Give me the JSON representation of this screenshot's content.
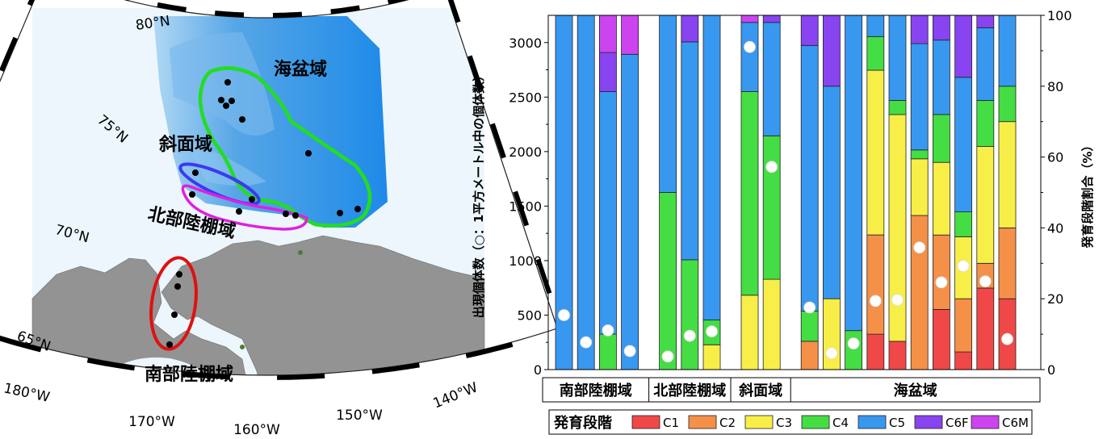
{
  "map": {
    "lat_labels": [
      "80°N",
      "75°N",
      "70°N",
      "65°N"
    ],
    "lon_labels": [
      "180°W",
      "170°W",
      "160°W",
      "150°W",
      "140°W"
    ],
    "regions": [
      {
        "name": "海盆域",
        "color": "#22dd22"
      },
      {
        "name": "斜面域",
        "color": "#3a3af0"
      },
      {
        "name": "北部陸棚域",
        "color": "#e020e0"
      },
      {
        "name": "南部陸棚域",
        "color": "#e01010"
      }
    ]
  },
  "chart_data": {
    "type": "bar",
    "stacked": true,
    "ylabel": "出現個体数（○：1平方メートル中の個体数）",
    "y2label": "発育段階割合（%）",
    "ylim": [
      0,
      3250
    ],
    "y2lim": [
      0,
      100
    ],
    "yticks": [
      0,
      500,
      1000,
      1500,
      2000,
      2500,
      3000
    ],
    "y2ticks": [
      0,
      20,
      40,
      60,
      80,
      100
    ],
    "legend_title": "発育段階",
    "stages": [
      {
        "name": "C1",
        "color": "#f04848"
      },
      {
        "name": "C2",
        "color": "#f59048"
      },
      {
        "name": "C3",
        "color": "#f8ee48"
      },
      {
        "name": "C4",
        "color": "#44dd44"
      },
      {
        "name": "C5",
        "color": "#3898f0"
      },
      {
        "name": "C6F",
        "color": "#8844f0"
      },
      {
        "name": "C6M",
        "color": "#cc44f0"
      }
    ],
    "groups": [
      {
        "label": "南部陸棚域",
        "stations": [
          {
            "pct": [
              0,
              0,
              0,
              0,
              100,
              0,
              0
            ],
            "count": 500
          },
          {
            "pct": [
              0,
              0,
              0,
              0,
              100,
              0,
              0
            ],
            "count": 250
          },
          {
            "pct": [
              0,
              0,
              0,
              10,
              68.5,
              11,
              10.5
            ],
            "count": 360
          },
          {
            "pct": [
              0,
              0,
              0,
              0,
              89,
              0,
              11
            ],
            "count": 170
          }
        ]
      },
      {
        "label": "北部陸棚域",
        "stations": [
          {
            "pct": [
              0,
              0,
              0,
              50,
              50,
              0,
              0
            ],
            "count": 120
          },
          {
            "pct": [
              0,
              0,
              0,
              31,
              61.5,
              7.5,
              0
            ],
            "count": 310
          },
          {
            "pct": [
              0,
              0,
              7,
              7,
              86,
              0,
              0
            ],
            "count": 350
          }
        ]
      },
      {
        "label": "斜面域",
        "stations": [
          {
            "pct": [
              0,
              0,
              21,
              57.5,
              19.5,
              0,
              2
            ],
            "count": 2960
          },
          {
            "pct": [
              0,
              0,
              25.5,
              40.5,
              32,
              2,
              0
            ],
            "count": 1860
          }
        ]
      },
      {
        "label": "海盆域",
        "stations": [
          {
            "pct": [
              0,
              8,
              0,
              8.5,
              75,
              8.5,
              0
            ],
            "count": 570
          },
          {
            "pct": [
              0,
              0,
              20,
              0,
              60,
              20,
              0
            ],
            "count": 150
          },
          {
            "pct": [
              0,
              0,
              0,
              11,
              89,
              0,
              0
            ],
            "count": 240
          },
          {
            "pct": [
              10,
              28,
              46.5,
              9.5,
              6,
              0,
              0
            ],
            "count": 630
          },
          {
            "pct": [
              8,
              0,
              64,
              4,
              24,
              0,
              0
            ],
            "count": 640
          },
          {
            "pct": [
              0,
              43.5,
              16,
              2.5,
              30,
              8,
              0
            ],
            "count": 1120
          },
          {
            "pct": [
              17,
              21,
              20.5,
              13.5,
              21,
              7,
              0
            ],
            "count": 800
          },
          {
            "pct": [
              5,
              15,
              17.5,
              7,
              38,
              17.5,
              0
            ],
            "count": 950
          },
          {
            "pct": [
              23,
              7,
              33,
              13,
              20.5,
              3.5,
              0
            ],
            "count": 810
          },
          {
            "pct": [
              20,
              20,
              30,
              10,
              20,
              0,
              0
            ],
            "count": 280
          }
        ]
      }
    ]
  }
}
